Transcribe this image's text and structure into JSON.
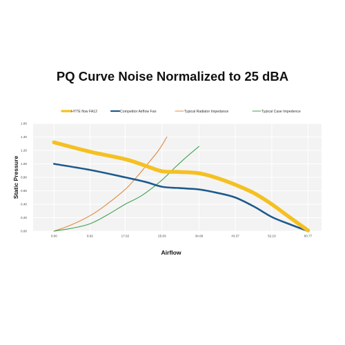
{
  "colors": {
    "hyte": "#F5C021",
    "competitor": "#1D5A8E",
    "radiator": "#E08A3C",
    "case": "#3FA04F",
    "plot_bg": "#F3F3F3",
    "grid": "#FFFFFF"
  },
  "chart_data": {
    "type": "line",
    "title": "PQ Curve Noise Normalized to 25 dBA",
    "xlabel": "Airflow",
    "ylabel": "Static Pressure",
    "xlim": [
      -5,
      64
    ],
    "ylim": [
      0,
      1.6
    ],
    "x_ticks": [
      "0.00",
      "8.62",
      "17.02",
      "25.83",
      "34.69",
      "43.37",
      "52.10",
      "60.77"
    ],
    "y_ticks": [
      "0.00",
      "0.20",
      "0.40",
      "0.60",
      "0.80",
      "1.00",
      "1.20",
      "1.40",
      "1.60"
    ],
    "grid": true,
    "legend_position": "top",
    "series": [
      {
        "name": "HYTE flow FA12",
        "color_key": "hyte",
        "line_style": "thick",
        "x": [
          0.0,
          8.62,
          17.02,
          22.0,
          25.83,
          30.0,
          34.69,
          39.0,
          43.37,
          48.0,
          52.1,
          56.5,
          60.77
        ],
        "y": [
          1.32,
          1.18,
          1.07,
          0.97,
          0.89,
          0.88,
          0.86,
          0.79,
          0.69,
          0.56,
          0.4,
          0.2,
          0.01
        ]
      },
      {
        "name": "Competitor Airflow Fan",
        "color_key": "competitor",
        "line_style": "medium",
        "x": [
          0.0,
          8.62,
          17.02,
          22.0,
          25.83,
          30.0,
          34.69,
          39.0,
          43.37,
          48.0,
          52.1,
          56.5,
          60.77
        ],
        "y": [
          1.0,
          0.91,
          0.8,
          0.73,
          0.66,
          0.64,
          0.62,
          0.57,
          0.5,
          0.36,
          0.21,
          0.1,
          0.0
        ]
      },
      {
        "name": "Typical Radiator Impedance",
        "color_key": "radiator",
        "line_style": "thin",
        "x": [
          0.0,
          4.0,
          8.62,
          12.0,
          17.02,
          20.0,
          22.0,
          25.0,
          27.0
        ],
        "y": [
          0.0,
          0.09,
          0.23,
          0.37,
          0.62,
          0.82,
          0.97,
          1.2,
          1.4
        ]
      },
      {
        "name": "Typical Case Impedence",
        "color_key": "case",
        "line_style": "thin",
        "x": [
          0.0,
          4.0,
          8.62,
          13.0,
          17.02,
          21.0,
          25.83,
          29.0,
          32.0,
          34.69
        ],
        "y": [
          0.0,
          0.04,
          0.11,
          0.25,
          0.4,
          0.53,
          0.76,
          0.95,
          1.12,
          1.26
        ]
      }
    ]
  }
}
